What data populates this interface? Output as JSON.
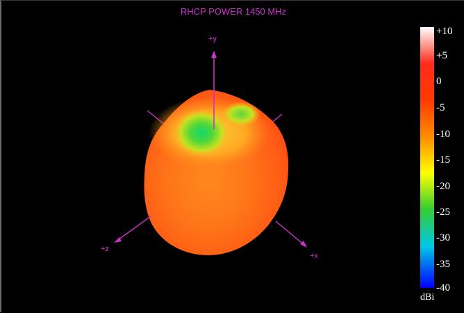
{
  "plot": {
    "title": "RHCP POWER 1450  MHz"
  },
  "axes": {
    "y_label": "+y",
    "z_label": "+z",
    "x_label": "+x",
    "color": "#cc33cc"
  },
  "colorbar": {
    "ticks": [
      "+10",
      "+5",
      "0",
      "-5",
      "-10",
      "-15",
      "-20",
      "-25",
      "-30",
      "-35",
      "-40"
    ],
    "unit": "dBi"
  }
}
